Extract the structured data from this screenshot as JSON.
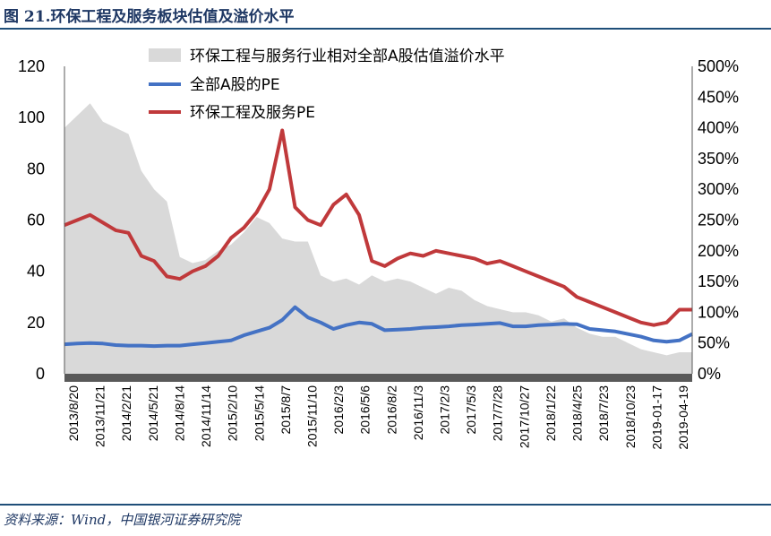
{
  "header": {
    "title": "图 21.环保工程及服务板块估值及溢价水平"
  },
  "footer": {
    "source": "资料来源：Wind，中国银河证券研究院"
  },
  "chart_data": {
    "type": "line",
    "title": "",
    "xlabel": "",
    "ylabel": "",
    "ylim": [
      0,
      120
    ],
    "y2lim": [
      0,
      500
    ],
    "y_ticks": [
      "0",
      "20",
      "40",
      "60",
      "80",
      "100",
      "120"
    ],
    "y2_ticks": [
      "0%",
      "50%",
      "100%",
      "150%",
      "200%",
      "250%",
      "300%",
      "350%",
      "400%",
      "450%",
      "500%"
    ],
    "x_ticks": [
      "2013/8/20",
      "2013/11/21",
      "2014/2/21",
      "2014/5/21",
      "2014/8/14",
      "2014/11/14",
      "2015/2/10",
      "2015/5/14",
      "2015/8/7",
      "2015/11/10",
      "2016/2/3",
      "2016/5/6",
      "2016/8/2",
      "2016/11/3",
      "2017/2/3",
      "2017/5/3",
      "2017/7/28",
      "2017/10/27",
      "2018/1/22",
      "2018/4/25",
      "2018/7/23",
      "2018/10/23",
      "2019-01-17",
      "2019-04-19"
    ],
    "legend_position": "top",
    "series": [
      {
        "name": "环保工程与服务行业相对全部A股估值溢价水平",
        "type": "area",
        "axis": "right",
        "color": "#d9d9d9",
        "values": [
          400,
          420,
          440,
          410,
          400,
          390,
          330,
          300,
          280,
          190,
          180,
          185,
          200,
          210,
          230,
          255,
          245,
          220,
          215,
          215,
          160,
          150,
          155,
          145,
          160,
          150,
          155,
          150,
          140,
          130,
          140,
          135,
          120,
          110,
          105,
          100,
          100,
          95,
          85,
          90,
          75,
          65,
          60,
          60,
          50,
          40,
          35,
          30,
          35,
          35
        ]
      },
      {
        "name": "全部A股的PE",
        "type": "line",
        "axis": "left",
        "color": "#4472c4",
        "values": [
          11.5,
          11.8,
          12.0,
          11.8,
          11.2,
          11.0,
          11.0,
          10.8,
          11.0,
          11.0,
          11.5,
          12.0,
          12.5,
          13.0,
          15.0,
          16.5,
          18.0,
          21.0,
          26.0,
          22.0,
          20.0,
          17.5,
          19.0,
          20.0,
          19.5,
          17.0,
          17.2,
          17.5,
          18.0,
          18.2,
          18.5,
          19.0,
          19.2,
          19.5,
          19.8,
          18.5,
          18.5,
          19.0,
          19.2,
          19.5,
          19.3,
          17.5,
          17.0,
          16.5,
          15.5,
          14.5,
          13.0,
          12.5,
          13.0,
          15.5
        ]
      },
      {
        "name": "环保工程及服务PE",
        "type": "line",
        "axis": "left",
        "color": "#c0393b",
        "values": [
          58,
          60,
          62,
          59,
          56,
          55,
          46,
          44,
          38,
          37,
          40,
          42,
          46,
          53,
          57,
          63,
          72,
          95,
          65,
          60,
          58,
          66,
          70,
          62,
          44,
          42,
          45,
          47,
          46,
          48,
          47,
          46,
          45,
          43,
          44,
          42,
          40,
          38,
          36,
          34,
          30,
          28,
          26,
          24,
          22,
          20,
          19,
          20,
          25,
          25
        ]
      }
    ]
  }
}
